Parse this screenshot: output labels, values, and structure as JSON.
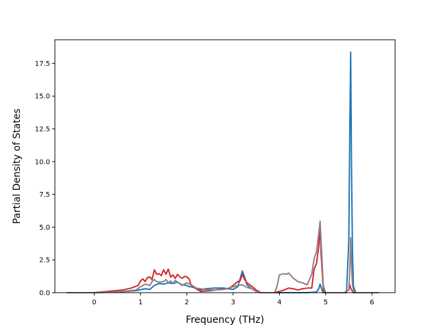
{
  "chart_data": {
    "type": "line",
    "title": "",
    "xlabel": "Frequency (THz)",
    "ylabel": "Partial Density of States",
    "xlim": [
      -0.85,
      6.5
    ],
    "ylim": [
      0,
      19.3
    ],
    "xticks": [
      0,
      1,
      2,
      3,
      4,
      5,
      6
    ],
    "xtick_labels": [
      "0",
      "1",
      "2",
      "3",
      "4",
      "5",
      "6"
    ],
    "yticks": [
      0.0,
      2.5,
      5.0,
      7.5,
      10.0,
      12.5,
      15.0,
      17.5
    ],
    "ytick_labels": [
      "0.0",
      "2.5",
      "5.0",
      "7.5",
      "10.0",
      "12.5",
      "15.0",
      "17.5"
    ],
    "grid": false,
    "legend": "none",
    "series": [
      {
        "color": "#1f77b4",
        "x": [
          -0.6,
          0.0,
          0.5,
          0.9,
          1.1,
          1.2,
          1.3,
          1.4,
          1.5,
          1.6,
          1.7,
          1.8,
          1.9,
          2.0,
          2.05,
          2.1,
          2.2,
          2.3,
          2.4,
          2.6,
          2.8,
          2.9,
          3.0,
          3.1,
          3.2,
          3.25,
          3.3,
          3.4,
          3.5,
          3.6,
          3.8,
          4.0,
          4.3,
          4.6,
          4.8,
          4.85,
          4.88,
          4.92,
          4.95,
          5.0,
          5.3,
          5.45,
          5.5,
          5.52,
          5.54,
          5.56,
          5.58,
          5.6,
          5.65,
          6.15
        ],
        "y": [
          0,
          0,
          0.05,
          0.15,
          0.3,
          0.25,
          0.55,
          0.7,
          0.65,
          0.75,
          0.7,
          0.8,
          0.6,
          0.55,
          0.45,
          0.45,
          0.35,
          0.2,
          0.3,
          0.35,
          0.35,
          0.3,
          0.25,
          0.45,
          1.65,
          1.2,
          0.6,
          0.3,
          0.1,
          0,
          0,
          0,
          0,
          0,
          0.05,
          0.3,
          0.65,
          0.2,
          0,
          0,
          0,
          0,
          4.0,
          12.0,
          18.35,
          9.0,
          3.0,
          0.5,
          0,
          0
        ]
      },
      {
        "color": "#d62728",
        "x": [
          -0.6,
          0.0,
          0.3,
          0.6,
          0.8,
          0.95,
          1.0,
          1.05,
          1.1,
          1.15,
          1.2,
          1.25,
          1.3,
          1.35,
          1.4,
          1.45,
          1.5,
          1.55,
          1.6,
          1.65,
          1.7,
          1.75,
          1.8,
          1.85,
          1.9,
          1.95,
          2.0,
          2.05,
          2.1,
          2.3,
          2.5,
          2.7,
          2.9,
          3.0,
          3.05,
          3.1,
          3.15,
          3.2,
          3.25,
          3.3,
          3.4,
          3.5,
          3.6,
          3.9,
          4.0,
          4.1,
          4.2,
          4.3,
          4.4,
          4.5,
          4.6,
          4.7,
          4.75,
          4.8,
          4.85,
          4.88,
          4.9,
          4.95,
          5.0,
          5.4,
          5.5,
          5.52,
          5.54,
          5.56,
          5.6,
          6.15
        ],
        "y": [
          0,
          0,
          0.1,
          0.2,
          0.35,
          0.55,
          0.9,
          1.05,
          0.85,
          1.15,
          1.2,
          1.0,
          1.75,
          1.4,
          1.45,
          1.3,
          1.75,
          1.4,
          1.8,
          1.2,
          1.35,
          1.1,
          1.4,
          1.2,
          1.1,
          1.25,
          1.2,
          1.05,
          0.5,
          0.1,
          0.15,
          0.25,
          0.3,
          0.55,
          0.7,
          0.85,
          0.9,
          1.4,
          1.0,
          0.75,
          0.5,
          0.2,
          0,
          0,
          0.1,
          0.2,
          0.35,
          0.3,
          0.2,
          0.3,
          0.35,
          0.35,
          1.8,
          2.2,
          3.5,
          5.2,
          3.0,
          0.2,
          0,
          0,
          0.2,
          0.6,
          0.35,
          0.2,
          0,
          0
        ]
      },
      {
        "color": "#8c7f89",
        "x": [
          -0.6,
          0.0,
          0.5,
          0.9,
          1.0,
          1.1,
          1.2,
          1.25,
          1.3,
          1.35,
          1.4,
          1.5,
          1.55,
          1.6,
          1.65,
          1.7,
          1.75,
          1.8,
          1.9,
          2.0,
          2.1,
          2.2,
          2.4,
          2.6,
          2.8,
          3.0,
          3.1,
          3.2,
          3.25,
          3.3,
          3.4,
          3.5,
          3.6,
          3.9,
          3.95,
          4.0,
          4.1,
          4.15,
          4.2,
          4.3,
          4.4,
          4.5,
          4.6,
          4.7,
          4.75,
          4.8,
          4.85,
          4.88,
          4.9,
          4.95,
          5.0,
          5.4,
          5.5,
          5.52,
          5.54,
          5.56,
          5.58,
          5.6,
          5.65,
          6.15
        ],
        "y": [
          0,
          0,
          0.05,
          0.2,
          0.45,
          0.65,
          0.55,
          0.85,
          1.0,
          0.85,
          0.8,
          0.85,
          1.0,
          0.75,
          0.9,
          0.7,
          0.95,
          0.8,
          0.55,
          0.75,
          0.6,
          0.35,
          0.25,
          0.2,
          0.25,
          0.45,
          0.55,
          0.6,
          0.5,
          0.4,
          0.3,
          0.1,
          0,
          0,
          0.5,
          1.35,
          1.45,
          1.4,
          1.5,
          1.1,
          0.85,
          0.75,
          0.6,
          1.4,
          2.6,
          3.1,
          4.5,
          5.45,
          4.0,
          0.5,
          0,
          0,
          0.2,
          1.5,
          4.2,
          2.0,
          0.6,
          0.2,
          0,
          0
        ]
      }
    ]
  }
}
